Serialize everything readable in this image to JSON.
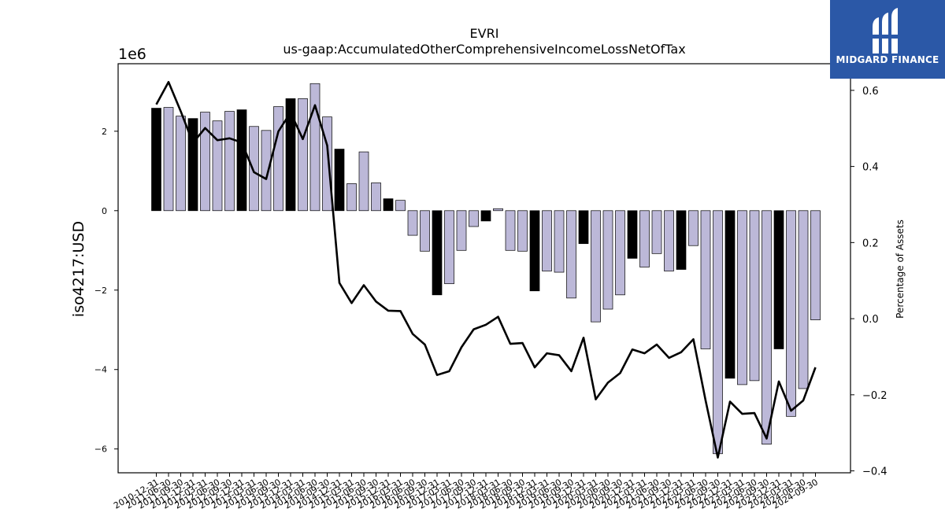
{
  "header": {
    "ticker": "EVRI",
    "concept": "us-gaap:AccumulatedOtherComprehensiveIncomeLossNetOfTax"
  },
  "logo": {
    "text": "MIDGARD FINANCE",
    "icon": "midgard-logo-icon",
    "bg_color": "#2b58a7"
  },
  "chart_data": {
    "type": "bar",
    "title": "EVRI",
    "subtitle": "us-gaap:AccumulatedOtherComprehensiveIncomeLossNetOfTax",
    "ylabel": "iso4217:USD",
    "y_offset_label": "1e6",
    "y2label": "Percentage of Assets",
    "ylim": [
      -6.6,
      3.7
    ],
    "y2lim": [
      -0.405,
      0.67
    ],
    "yticks": [
      -6,
      -4,
      -2,
      0,
      2
    ],
    "y2ticks": [
      -0.4,
      -0.2,
      0.0,
      0.2,
      0.4,
      0.6
    ],
    "ytick_labels": [
      "−6",
      "−4",
      "−2",
      "0",
      "2"
    ],
    "y2tick_labels": [
      "−0.4",
      "−0.2",
      "0.0",
      "0.2",
      "0.4",
      "0.6"
    ],
    "grid": false,
    "colors": {
      "bar_default": "#bcb8d8",
      "bar_highlight": "#000000",
      "bar_edge": "#000000",
      "line": "#000000"
    },
    "categories": [
      "2010-12-31",
      "2011-06-30",
      "2011-09-30",
      "2011-12-31",
      "2012-03-31",
      "2012-06-30",
      "2012-09-30",
      "2012-12-31",
      "2013-03-31",
      "2013-06-30",
      "2013-09-30",
      "2013-12-31",
      "2014-03-31",
      "2014-06-30",
      "2014-09-30",
      "2014-12-31",
      "2015-03-31",
      "2015-06-30",
      "2015-09-30",
      "2015-12-31",
      "2016-03-31",
      "2016-06-30",
      "2016-09-30",
      "2016-12-31",
      "2017-03-31",
      "2017-06-30",
      "2017-09-30",
      "2017-12-31",
      "2018-03-31",
      "2018-06-30",
      "2018-09-30",
      "2018-12-31",
      "2019-03-31",
      "2019-06-30",
      "2019-09-30",
      "2019-12-31",
      "2020-03-31",
      "2020-06-30",
      "2020-09-30",
      "2020-12-31",
      "2021-03-31",
      "2021-06-30",
      "2021-09-30",
      "2021-12-31",
      "2022-03-31",
      "2022-06-30",
      "2022-09-30",
      "2022-12-31",
      "2023-03-31",
      "2023-06-30",
      "2023-09-30",
      "2023-12-31",
      "2024-03-31",
      "2024-06-30",
      "2024-09-30"
    ],
    "series": [
      {
        "kind": "bar",
        "unit": "1e6 USD",
        "values": [
          2.58,
          2.6,
          2.38,
          2.32,
          2.48,
          2.26,
          2.5,
          2.54,
          2.12,
          2.02,
          2.62,
          2.82,
          2.82,
          3.2,
          2.36,
          1.55,
          0.68,
          1.48,
          0.7,
          0.3,
          0.26,
          -0.62,
          -1.02,
          -2.12,
          -1.84,
          -1.0,
          -0.4,
          -0.26,
          0.05,
          -1.0,
          -1.02,
          -2.02,
          -1.52,
          -1.55,
          -2.2,
          -0.83,
          -2.8,
          -2.48,
          -2.12,
          -1.2,
          -1.42,
          -1.08,
          -1.52,
          -1.48,
          -0.88,
          -3.48,
          -6.12,
          -4.22,
          -4.38,
          -4.28,
          -5.88,
          -3.48,
          -5.18,
          -4.48,
          -2.75
        ],
        "highlight": [
          true,
          false,
          false,
          true,
          false,
          false,
          false,
          true,
          false,
          false,
          false,
          true,
          false,
          false,
          false,
          true,
          false,
          false,
          false,
          true,
          false,
          false,
          false,
          true,
          false,
          false,
          false,
          true,
          false,
          false,
          false,
          true,
          false,
          false,
          false,
          true,
          false,
          false,
          false,
          true,
          false,
          false,
          false,
          true,
          false,
          false,
          false,
          true,
          false,
          false,
          false,
          true,
          false,
          false,
          false
        ]
      },
      {
        "kind": "line",
        "axis": "right",
        "values": [
          0.563,
          0.622,
          0.545,
          0.462,
          0.501,
          0.469,
          0.474,
          0.463,
          0.385,
          0.367,
          0.492,
          0.542,
          0.472,
          0.561,
          0.455,
          0.094,
          0.041,
          0.088,
          0.045,
          0.021,
          0.02,
          -0.04,
          -0.068,
          -0.148,
          -0.138,
          -0.075,
          -0.028,
          -0.016,
          0.005,
          -0.066,
          -0.064,
          -0.128,
          -0.091,
          -0.096,
          -0.138,
          -0.05,
          -0.212,
          -0.168,
          -0.143,
          -0.081,
          -0.091,
          -0.068,
          -0.103,
          -0.088,
          -0.054,
          -0.215,
          -0.365,
          -0.218,
          -0.25,
          -0.248,
          -0.315,
          -0.165,
          -0.242,
          -0.215,
          -0.128
        ]
      }
    ]
  }
}
